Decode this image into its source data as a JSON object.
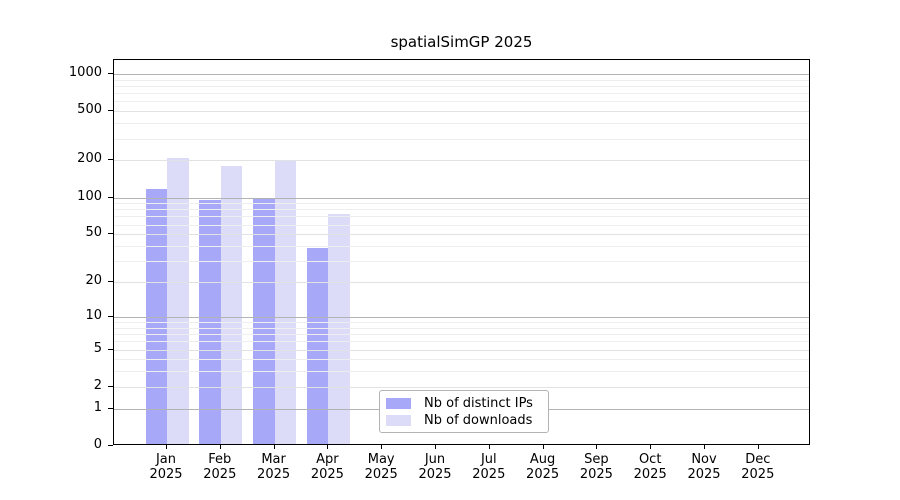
{
  "title": "spatialSimGP 2025",
  "chart_data": {
    "type": "bar",
    "title": "spatialSimGP 2025",
    "x_year": "2025",
    "categories": [
      "Jan",
      "Feb",
      "Mar",
      "Apr",
      "May",
      "Jun",
      "Jul",
      "Aug",
      "Sep",
      "Oct",
      "Nov",
      "Dec"
    ],
    "series": [
      {
        "name": "Nb of distinct IPs",
        "color": "#a8a8f8",
        "values": [
          113,
          92,
          96,
          37,
          0,
          0,
          0,
          0,
          0,
          0,
          0,
          0
        ]
      },
      {
        "name": "Nb of downloads",
        "color": "#dcdcf8",
        "values": [
          200,
          173,
          192,
          70,
          0,
          0,
          0,
          0,
          0,
          0,
          0,
          0
        ]
      }
    ],
    "y_ticks": [
      0,
      1,
      2,
      5,
      10,
      20,
      50,
      100,
      200,
      500,
      1000
    ],
    "y_minor_gridlines": [
      3,
      4,
      6,
      7,
      8,
      9,
      30,
      40,
      60,
      70,
      80,
      90,
      300,
      400,
      600,
      700,
      800,
      900
    ],
    "y_scale": "log10(1+y)",
    "ylim": [
      0,
      1270
    ],
    "xlabel": "",
    "ylabel": "",
    "grid": true,
    "legend_position": "lower center inside axes",
    "legend_labels": [
      "Nb of distinct IPs",
      "Nb of downloads"
    ]
  },
  "colors": {
    "background": "#ffffff",
    "spine": "#000000",
    "tick_label": "#000000",
    "grid_major": "#b3b3b3",
    "grid_mid": "#e2e2e2",
    "grid_minor": "#eeeeee",
    "legend_border": "#b3b3b3",
    "series_ips": "#a8a8f8",
    "series_downloads": "#dcdcf8"
  }
}
